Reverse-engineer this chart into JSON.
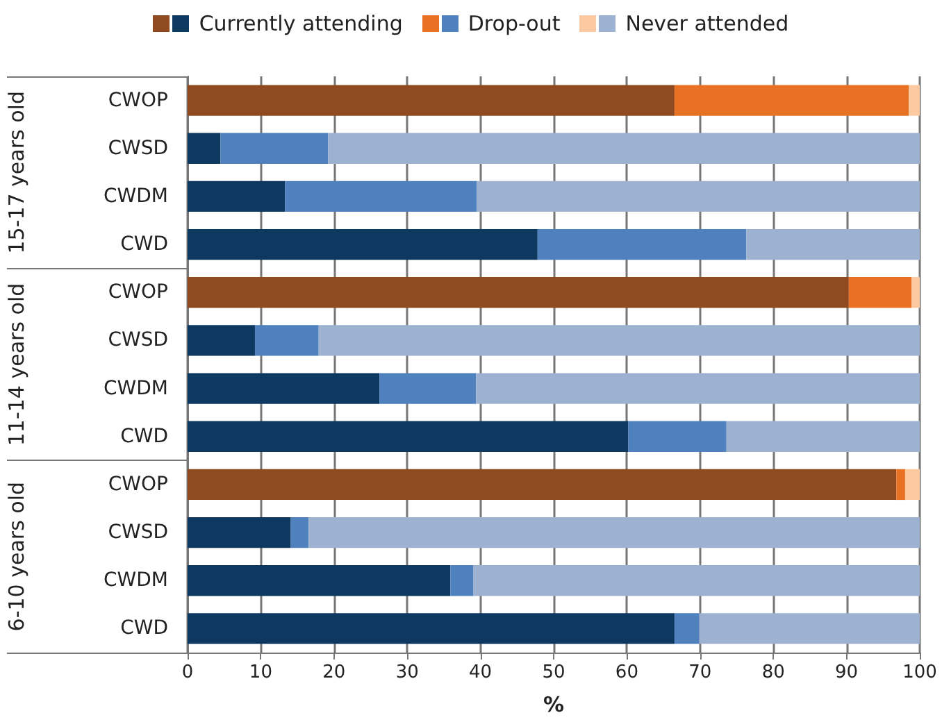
{
  "chart_data": {
    "type": "bar",
    "orientation": "horizontal",
    "stacked": true,
    "xlabel": "%",
    "categories": [
      "CWOP",
      "CWSD",
      "CWDM",
      "CWD",
      "CWOP",
      "CWSD",
      "CWDM",
      "CWD",
      "CWOP",
      "CWSD",
      "CWDM",
      "CWD"
    ],
    "annotations": [
      "15-17 years old",
      "11-14 years old",
      "6-10 years old"
    ],
    "series": [
      {
        "name": "Currently attending",
        "colors": [
          "#8f4a1f",
          "#0d3860",
          "#0d3860",
          "#0d3860",
          "#8f4a1f",
          "#0d3860",
          "#0d3860",
          "#0d3860",
          "#8f4a1f",
          "#0d3860",
          "#0d3860",
          "#0d3860"
        ],
        "values": [
          66.5,
          4.5,
          13.3,
          47.8,
          90.3,
          9.2,
          26.2,
          60.2,
          96.8,
          14.1,
          35.9,
          66.5
        ]
      },
      {
        "name": "Drop-out",
        "colors": [
          "#e87124",
          "#4e81bd",
          "#4e81bd",
          "#4e81bd",
          "#e87124",
          "#4e81bd",
          "#4e81bd",
          "#4e81bd",
          "#e87124",
          "#4e81bd",
          "#4e81bd",
          "#4e81bd"
        ],
        "values": [
          32.0,
          14.7,
          26.2,
          28.5,
          8.6,
          8.7,
          13.2,
          13.4,
          1.2,
          2.4,
          3.1,
          3.4
        ]
      },
      {
        "name": "Never attended",
        "colors": [
          "#fcc9a0",
          "#9db2d1",
          "#9db2d1",
          "#9db2d1",
          "#fcc9a0",
          "#9db2d1",
          "#9db2d1",
          "#9db2d1",
          "#fcc9a0",
          "#9db2d1",
          "#9db2d1",
          "#9db2d1"
        ],
        "values": [
          1.5,
          80.8,
          60.5,
          23.7,
          1.1,
          82.1,
          60.6,
          26.4,
          2.0,
          83.5,
          61.0,
          30.1
        ]
      }
    ],
    "xlim": [
      0,
      100
    ],
    "xticks": [
      0,
      10,
      20,
      30,
      40,
      50,
      60,
      70,
      80,
      90,
      100
    ],
    "grid": true,
    "legend": "top"
  }
}
